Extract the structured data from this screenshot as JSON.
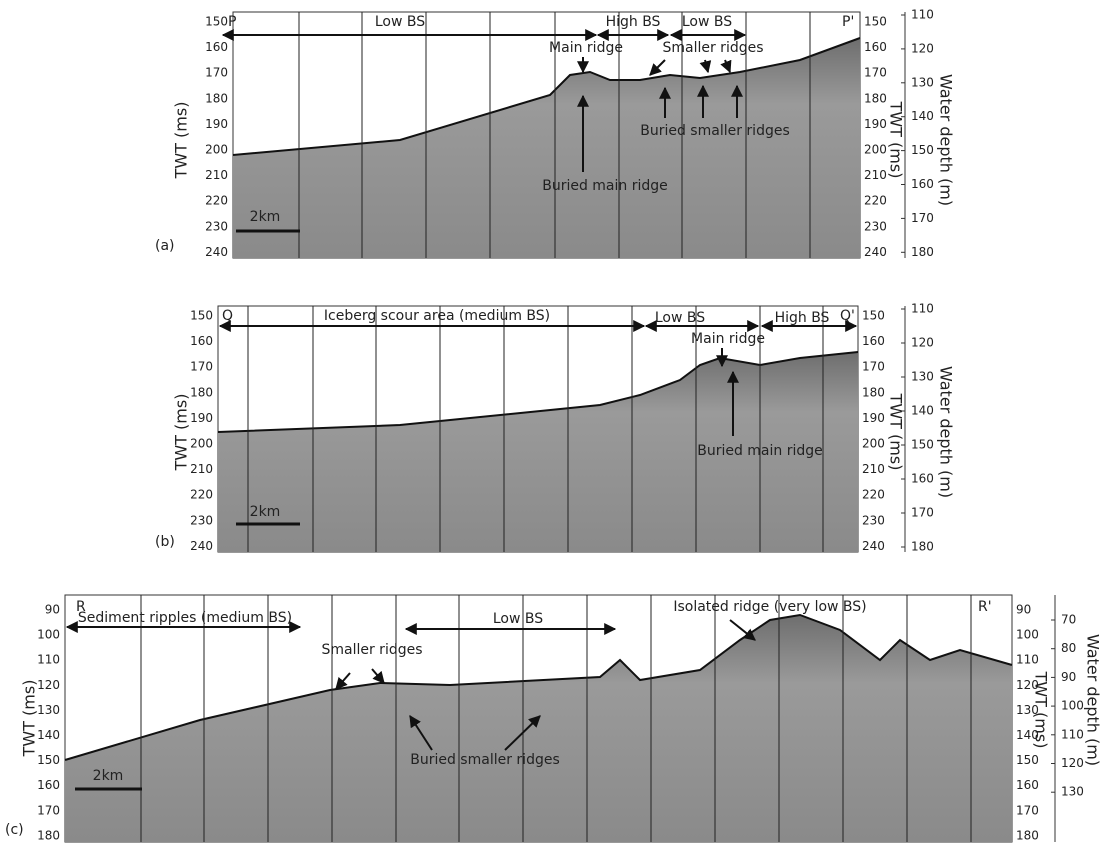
{
  "panels": [
    {
      "label": "(a)",
      "start": "P",
      "end": "P'",
      "twt_label": "TWT (ms)",
      "twt_right_label": "TWT (ms)",
      "depth_label": "Water depth (m)",
      "twt_ticks": [
        150,
        160,
        170,
        180,
        190,
        200,
        210,
        220,
        230,
        240
      ],
      "depth_ticks": [
        110,
        120,
        130,
        140,
        150,
        160,
        170,
        180
      ],
      "scale_bar": "2km",
      "zones": [
        "Low BS",
        "High BS",
        "Low BS"
      ],
      "annotations": [
        "Main ridge",
        "Smaller ridges",
        "Buried smaller ridges",
        "Buried main ridge"
      ]
    },
    {
      "label": "(b)",
      "start": "Q",
      "end": "Q'",
      "twt_label": "TWT (ms)",
      "twt_right_label": "TWT (ms)",
      "depth_label": "Water depth (m)",
      "twt_ticks": [
        150,
        160,
        170,
        180,
        190,
        200,
        210,
        220,
        230,
        240
      ],
      "depth_ticks": [
        110,
        120,
        130,
        140,
        150,
        160,
        170,
        180
      ],
      "scale_bar": "2km",
      "zones": [
        "Iceberg scour area (medium BS)",
        "Low BS",
        "High BS"
      ],
      "annotations": [
        "Main ridge",
        "Buried main ridge"
      ]
    },
    {
      "label": "(c)",
      "start": "R",
      "end": "R'",
      "twt_label": "TWT (ms)",
      "twt_right_label": "TWT (ms)",
      "depth_label": "Water depth (m)",
      "twt_ticks": [
        90,
        100,
        110,
        120,
        130,
        140,
        150,
        160,
        170,
        180
      ],
      "depth_ticks": [
        70,
        80,
        90,
        100,
        110,
        120,
        130
      ],
      "scale_bar": "2km",
      "zones": [
        "Sediment ripples (medium BS)",
        "Low BS"
      ],
      "annotations": [
        "Isolated ridge (very low BS)",
        "Smaller ridges",
        "Buried smaller ridges"
      ]
    }
  ]
}
